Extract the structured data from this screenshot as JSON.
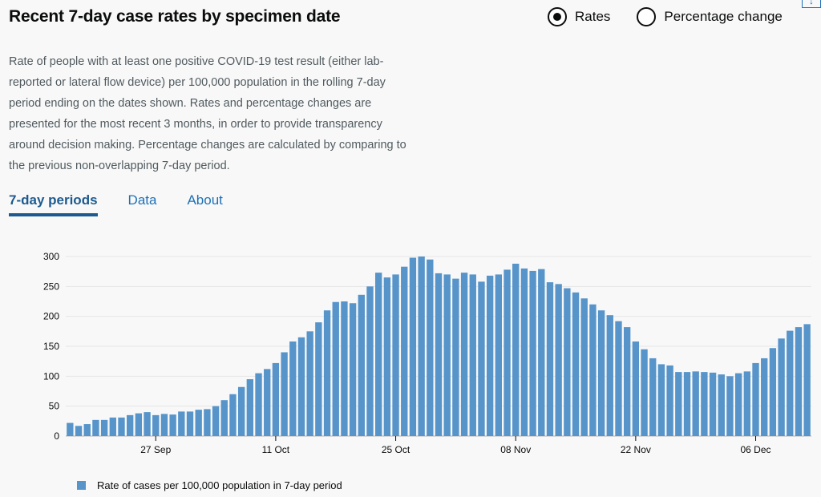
{
  "header": {
    "title": "Recent 7-day case rates by specimen date",
    "radios": [
      {
        "label": "Rates",
        "selected": true
      },
      {
        "label": "Percentage change",
        "selected": false
      }
    ],
    "corner_icon": "download-icon"
  },
  "description": "Rate of people with at least one positive COVID-19 test result (either lab-reported or lateral flow device) per 100,000 population in the rolling 7-day period ending on the dates shown. Rates and percentage changes are presented for the most recent 3 months, in order to provide transparency around decision making. Percentage changes are calculated by comparing to the previous non-overlapping 7-day period.",
  "tabs": [
    {
      "label": "7-day periods",
      "active": true
    },
    {
      "label": "Data",
      "active": false
    },
    {
      "label": "About",
      "active": false
    }
  ],
  "chart_data": {
    "type": "bar",
    "bar_color": "#5694ca",
    "grid": true,
    "ylim": [
      0,
      300
    ],
    "yticks": [
      0,
      50,
      100,
      150,
      200,
      250,
      300
    ],
    "xticks": [
      {
        "label": "27 Sep",
        "index": 10
      },
      {
        "label": "11 Oct",
        "index": 24
      },
      {
        "label": "25 Oct",
        "index": 38
      },
      {
        "label": "08 Nov",
        "index": 52
      },
      {
        "label": "22 Nov",
        "index": 66
      },
      {
        "label": "06 Dec",
        "index": 80
      }
    ],
    "series": [
      {
        "name": "Rate of cases per 100,000 population in 7-day period",
        "values": [
          22,
          17,
          20,
          27,
          27,
          31,
          31,
          35,
          38,
          40,
          35,
          37,
          36,
          41,
          41,
          44,
          45,
          50,
          60,
          70,
          82,
          95,
          105,
          112,
          122,
          140,
          158,
          165,
          175,
          190,
          210,
          224,
          225,
          222,
          236,
          250,
          273,
          265,
          270,
          283,
          298,
          300,
          295,
          272,
          270,
          263,
          273,
          270,
          258,
          268,
          270,
          278,
          288,
          280,
          276,
          279,
          257,
          254,
          247,
          240,
          230,
          220,
          210,
          202,
          192,
          182,
          158,
          145,
          130,
          120,
          118,
          107,
          107,
          108,
          107,
          106,
          103,
          100,
          105,
          108,
          122,
          130,
          147,
          163,
          176,
          182,
          187
        ]
      }
    ]
  },
  "legend": {
    "label": "Rate of cases per 100,000 population in 7-day period"
  }
}
